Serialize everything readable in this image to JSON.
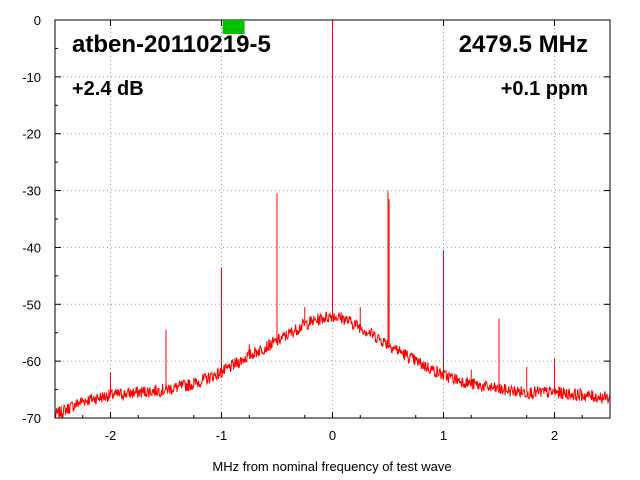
{
  "chart_data": {
    "type": "line",
    "xlabel": "MHz from nominal frequency of test wave",
    "ylabel": "",
    "xlim": [
      -2.5,
      2.5
    ],
    "ylim": [
      -70,
      0
    ],
    "x_ticks": [
      -2,
      -1,
      0,
      1,
      2
    ],
    "y_ticks": [
      0,
      -10,
      -20,
      -30,
      -40,
      -50,
      -60,
      -70
    ],
    "grid": true,
    "annotations": {
      "device": "atben-20110219-5",
      "frequency": "2479.5 MHz",
      "gain": "+2.4 dB",
      "offset": "+0.1 ppm"
    },
    "series": [
      {
        "color": "#ff0000",
        "baseline": {
          "x": [
            -2.5,
            -2.25,
            -2.0,
            -1.75,
            -1.5,
            -1.25,
            -1.0,
            -0.75,
            -0.5,
            -0.25,
            -0.1,
            0.0,
            0.1,
            0.25,
            0.5,
            0.75,
            1.0,
            1.25,
            1.5,
            1.75,
            2.0,
            2.25,
            2.5
          ],
          "y": [
            -69.5,
            -67.0,
            -66.0,
            -65.5,
            -65.0,
            -64.0,
            -62.0,
            -59.0,
            -56.5,
            -53.5,
            -52.5,
            -52.0,
            -52.5,
            -54.0,
            -57.0,
            -60.0,
            -62.5,
            -64.0,
            -65.0,
            -65.5,
            -65.5,
            -66.0,
            -66.5
          ]
        },
        "spikes": [
          {
            "x": 0.0,
            "y": 0.0
          },
          {
            "x": 0.0,
            "y": -42.0
          },
          {
            "x": -1.0,
            "y": -43.5
          },
          {
            "x": -0.5,
            "y": -30.5
          },
          {
            "x": 0.5,
            "y": -30.0
          },
          {
            "x": 0.51,
            "y": -31.5
          },
          {
            "x": 1.0,
            "y": -40.5
          },
          {
            "x": -1.5,
            "y": -54.5
          },
          {
            "x": 1.5,
            "y": -52.5
          },
          {
            "x": -2.0,
            "y": -62.0
          },
          {
            "x": 2.0,
            "y": -59.5
          },
          {
            "x": -0.75,
            "y": -57.0
          },
          {
            "x": -0.25,
            "y": -50.5
          },
          {
            "x": 0.25,
            "y": -50.5
          },
          {
            "x": 1.75,
            "y": -61.0
          },
          {
            "x": 1.25,
            "y": -61.5
          },
          {
            "x": -1.25,
            "y": -63.0
          }
        ]
      }
    ],
    "marker": {
      "x": -0.9,
      "color": "#00c000"
    }
  }
}
